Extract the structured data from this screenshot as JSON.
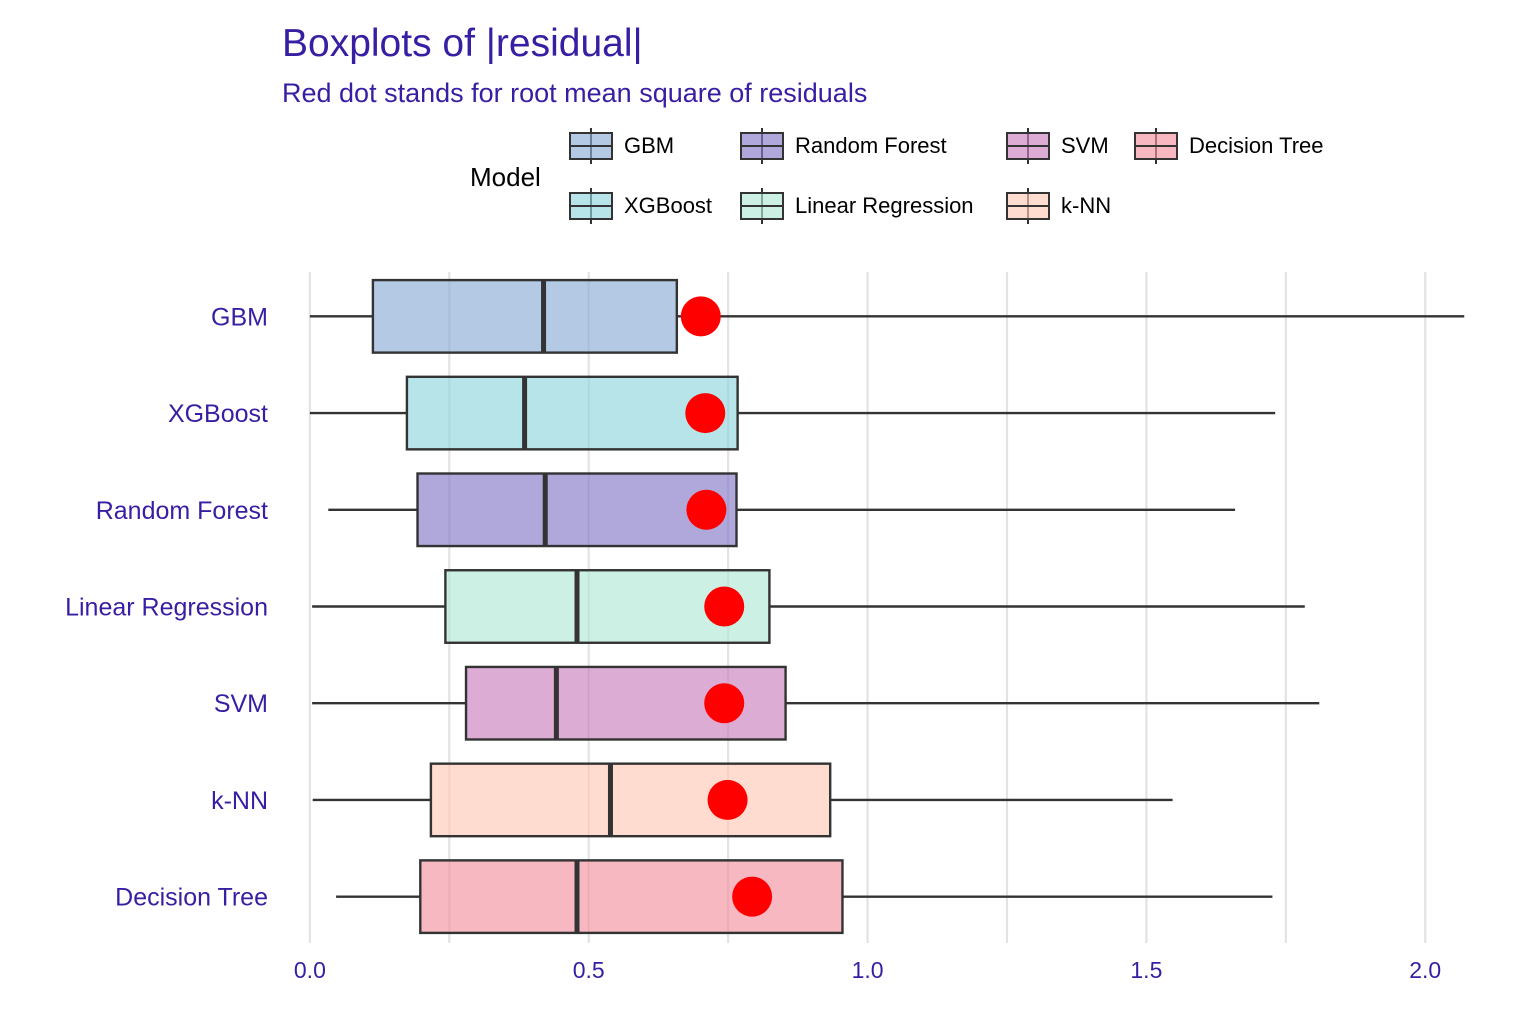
{
  "chart_data": {
    "type": "boxplot",
    "title": "Boxplots of |residual|",
    "subtitle": "Red dot stands for root mean square of residuals",
    "legend_title": "Model",
    "legend_position": "top",
    "orientation": "horizontal",
    "xlim": [
      -0.05,
      2.1
    ],
    "x_ticks": [
      0.0,
      0.5,
      1.0,
      1.5,
      2.0
    ],
    "x_tick_labels": [
      "0.0",
      "0.5",
      "1.0",
      "1.5",
      "2.0"
    ],
    "grid_x": [
      0.0,
      0.25,
      0.5,
      0.75,
      1.0,
      1.25,
      1.5,
      1.75,
      2.0
    ],
    "rmse_color": "#ff0000",
    "text_color": "#371ea3",
    "series": [
      {
        "name": "GBM",
        "color": "#8bacd6",
        "whisker_low": 0.0,
        "q1": 0.113,
        "median": 0.419,
        "q3": 0.658,
        "whisker_high": 2.07,
        "rmse": 0.701
      },
      {
        "name": "XGBoost",
        "color": "#8fd6dc",
        "whisker_low": 0.0,
        "q1": 0.174,
        "median": 0.385,
        "q3": 0.767,
        "whisker_high": 1.731,
        "rmse": 0.709
      },
      {
        "name": "Random Forest",
        "color": "#8679c6",
        "whisker_low": 0.033,
        "q1": 0.193,
        "median": 0.422,
        "q3": 0.765,
        "whisker_high": 1.659,
        "rmse": 0.711
      },
      {
        "name": "Linear Regression",
        "color": "#b1e9d6",
        "whisker_low": 0.004,
        "q1": 0.243,
        "median": 0.479,
        "q3": 0.824,
        "whisker_high": 1.784,
        "rmse": 0.743
      },
      {
        "name": "SVM",
        "color": "#cb7fbd",
        "whisker_low": 0.004,
        "q1": 0.28,
        "median": 0.442,
        "q3": 0.853,
        "whisker_high": 1.81,
        "rmse": 0.743
      },
      {
        "name": "k-NN",
        "color": "#ffc7b7",
        "whisker_low": 0.005,
        "q1": 0.217,
        "median": 0.539,
        "q3": 0.933,
        "whisker_high": 1.547,
        "rmse": 0.749
      },
      {
        "name": "Decision Tree",
        "color": "#f492a0",
        "whisker_low": 0.047,
        "q1": 0.198,
        "median": 0.479,
        "q3": 0.955,
        "whisker_high": 1.726,
        "rmse": 0.793
      }
    ]
  }
}
